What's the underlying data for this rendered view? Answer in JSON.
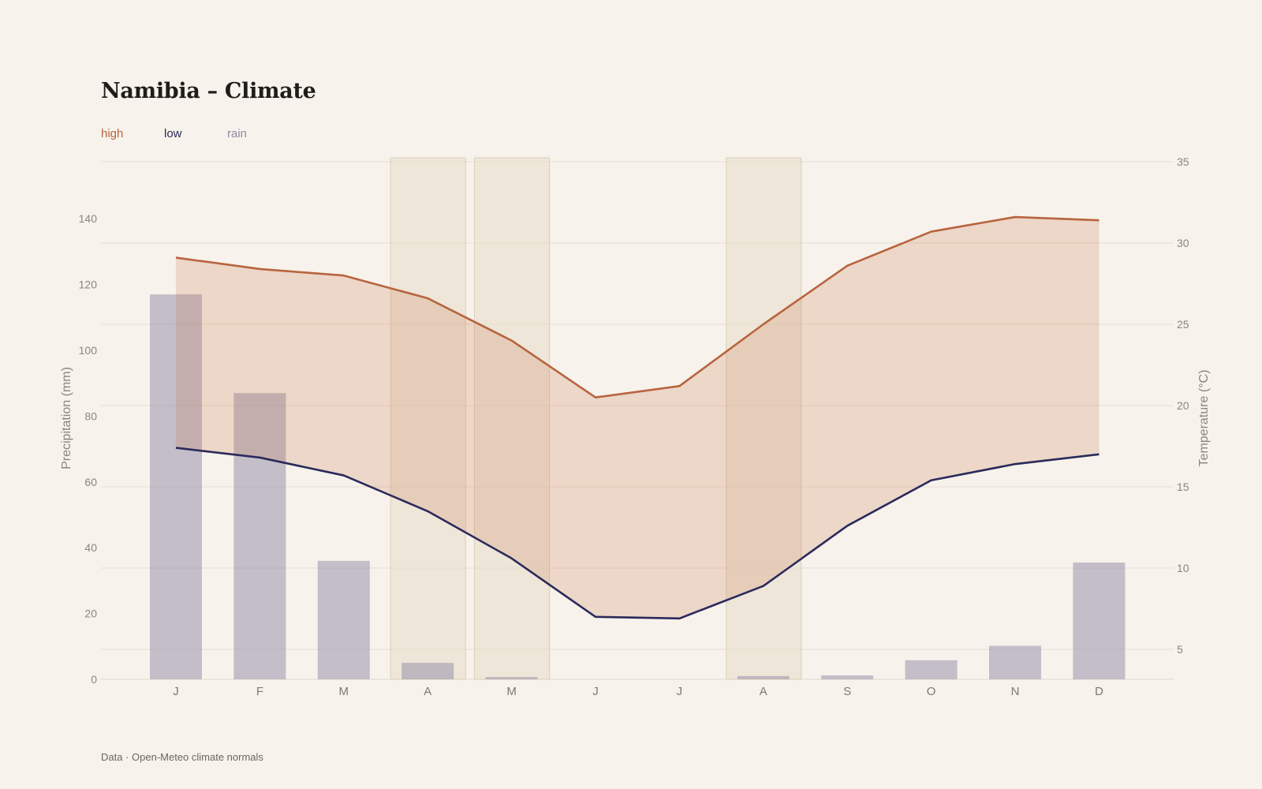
{
  "title": "Namibia – Climate",
  "source": "Data · Open-Meteo climate normals",
  "legend": [
    {
      "label": "high",
      "color": "#b8643f"
    },
    {
      "label": "low",
      "color": "#2b2a5c"
    },
    {
      "label": "rain",
      "color": "#8f8aa5"
    }
  ],
  "chart_data": {
    "type": "line",
    "categories": [
      "J",
      "F",
      "M",
      "A",
      "M",
      "J",
      "J",
      "A",
      "S",
      "O",
      "N",
      "D"
    ],
    "series": [
      {
        "name": "high",
        "axis": "right",
        "color": "#b8643f",
        "values": [
          29.1,
          28.4,
          28.0,
          26.6,
          24.0,
          20.5,
          21.2,
          25.0,
          28.6,
          30.7,
          31.6,
          31.4
        ]
      },
      {
        "name": "low",
        "axis": "right",
        "color": "#2b2a5c",
        "values": [
          17.4,
          16.8,
          15.7,
          13.5,
          10.6,
          7.0,
          6.9,
          8.9,
          12.6,
          15.4,
          16.4,
          17.0
        ]
      },
      {
        "name": "rain",
        "type": "bar",
        "axis": "left",
        "color": "#8f8aa5",
        "values": [
          117,
          87,
          36,
          5,
          0.7,
          0,
          0,
          1,
          1.2,
          5.8,
          10.2,
          35.5
        ]
      }
    ],
    "highlighted_months": [
      3,
      4,
      7
    ],
    "left_axis": {
      "label": "Precipitation (mm)",
      "ticks": [
        0,
        20,
        40,
        60,
        80,
        100,
        120,
        140
      ]
    },
    "right_axis": {
      "label": "Temperature (°C)",
      "ticks": [
        5,
        10,
        15,
        20,
        25,
        30,
        35
      ]
    },
    "grid": true
  }
}
